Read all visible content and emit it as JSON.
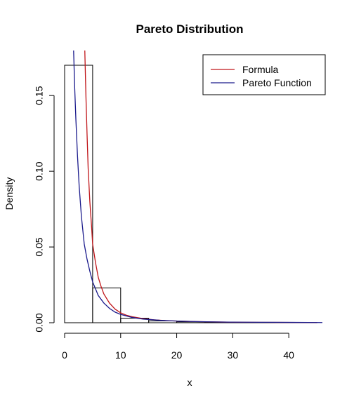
{
  "chart_data": {
    "type": "histogram+line",
    "title": "Pareto Distribution",
    "xlabel": "x",
    "ylabel": "Density",
    "xlim": [
      0,
      46.5
    ],
    "ylim": [
      0,
      0.17
    ],
    "x_ticks": [
      0,
      10,
      20,
      30,
      40
    ],
    "y_ticks": [
      0.0,
      0.05,
      0.1,
      0.15
    ],
    "x_tick_labels": [
      "0",
      "10",
      "20",
      "30",
      "40"
    ],
    "y_tick_labels": [
      "0.00",
      "0.05",
      "0.10",
      "0.15"
    ],
    "histogram": {
      "bins": [
        {
          "x0": 0,
          "x1": 5,
          "density": 0.17
        },
        {
          "x0": 5,
          "x1": 10,
          "density": 0.023
        },
        {
          "x0": 10,
          "x1": 15,
          "density": 0.003
        },
        {
          "x0": 15,
          "x1": 20,
          "density": 0.0012
        },
        {
          "x0": 20,
          "x1": 25,
          "density": 0.0006
        },
        {
          "x0": 25,
          "x1": 30,
          "density": 0.0003
        },
        {
          "x0": 30,
          "x1": 35,
          "density": 0.0002
        },
        {
          "x0": 35,
          "x1": 40,
          "density": 0.0001
        },
        {
          "x0": 40,
          "x1": 45,
          "density": 0.0001
        }
      ]
    },
    "series": [
      {
        "name": "Formula",
        "color": "#c0161a",
        "points": [
          [
            3.6,
            0.18
          ],
          [
            3.8,
            0.15
          ],
          [
            4.0,
            0.125
          ],
          [
            4.2,
            0.102
          ],
          [
            4.5,
            0.08
          ],
          [
            4.8,
            0.064
          ],
          [
            5.0,
            0.052
          ],
          [
            5.5,
            0.04
          ],
          [
            6.0,
            0.03
          ],
          [
            6.5,
            0.024
          ],
          [
            7.0,
            0.019
          ],
          [
            8.0,
            0.013
          ],
          [
            9.0,
            0.009
          ],
          [
            10.0,
            0.0065
          ],
          [
            11.0,
            0.005
          ],
          [
            12.0,
            0.004
          ],
          [
            14.0,
            0.0027
          ],
          [
            16.0,
            0.0019
          ],
          [
            18.0,
            0.0014
          ],
          [
            20.0,
            0.0011
          ],
          [
            23.0,
            0.0008
          ],
          [
            27.0,
            0.0005
          ],
          [
            32.0,
            0.0003
          ],
          [
            38.0,
            0.0002
          ],
          [
            45.0,
            0.0001
          ]
        ]
      },
      {
        "name": "Pareto Function",
        "color": "#1b1b8c",
        "points": [
          [
            1.6,
            0.18
          ],
          [
            1.8,
            0.155
          ],
          [
            2.0,
            0.135
          ],
          [
            2.3,
            0.11
          ],
          [
            2.6,
            0.09
          ],
          [
            3.0,
            0.07
          ],
          [
            3.5,
            0.052
          ],
          [
            4.0,
            0.042
          ],
          [
            4.5,
            0.034
          ],
          [
            5.0,
            0.027
          ],
          [
            6.0,
            0.018
          ],
          [
            7.0,
            0.013
          ],
          [
            8.0,
            0.0095
          ],
          [
            9.0,
            0.007
          ],
          [
            10.0,
            0.0055
          ],
          [
            12.0,
            0.0035
          ],
          [
            14.0,
            0.0024
          ],
          [
            17.0,
            0.0016
          ],
          [
            20.0,
            0.0011
          ],
          [
            24.0,
            0.0007
          ],
          [
            29.0,
            0.0004
          ],
          [
            35.0,
            0.0003
          ],
          [
            41.0,
            0.0002
          ],
          [
            46.0,
            0.0001
          ]
        ]
      }
    ],
    "legend": {
      "placement": "top-right",
      "entries": [
        "Formula",
        "Pareto Function"
      ]
    }
  }
}
